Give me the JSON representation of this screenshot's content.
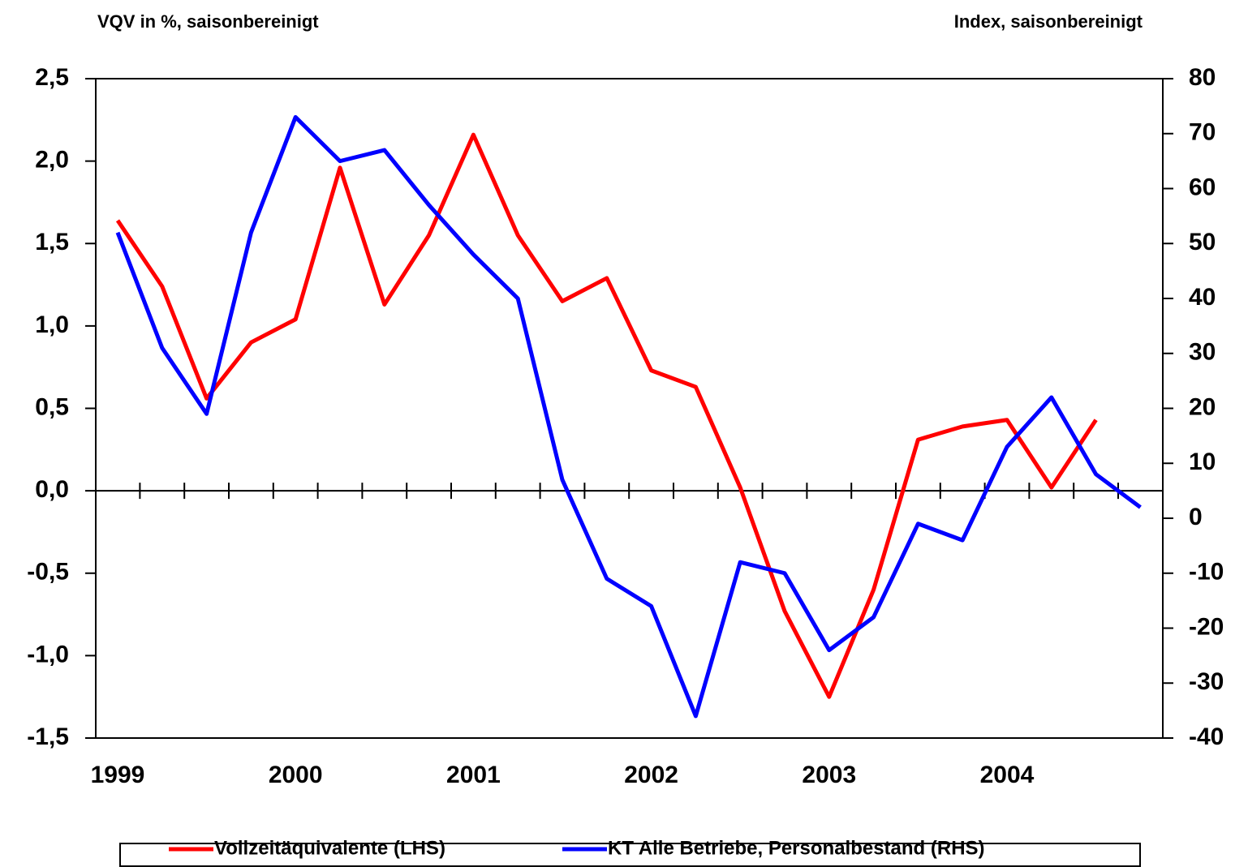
{
  "chart_data": {
    "type": "line",
    "y_label": "VQV in %, saisonbereinigt",
    "y2_label": "Index, saisonbereinigt",
    "categories": [
      "1999",
      null,
      null,
      null,
      "2000",
      null,
      null,
      null,
      "2001",
      null,
      null,
      null,
      "2002",
      null,
      null,
      null,
      "2003",
      null,
      null,
      null,
      "2004",
      null,
      null,
      null
    ],
    "series": [
      {
        "name": "Vollzeitäquivalente (LHS)",
        "color": "#ff0000",
        "axis": "y",
        "values": [
          1.64,
          1.24,
          0.56,
          0.9,
          1.04,
          1.96,
          1.13,
          1.55,
          2.16,
          1.55,
          1.15,
          1.29,
          0.73,
          0.63,
          0.02,
          -0.73,
          -1.25,
          -0.6,
          0.31,
          0.39,
          0.43,
          0.02,
          0.43,
          null
        ]
      },
      {
        "name": "KT Alle Betriebe, Personalbestand (RHS)",
        "color": "#0000ff",
        "axis": "y2",
        "values": [
          52,
          31,
          19,
          52,
          73,
          65,
          67,
          57,
          48,
          40,
          7,
          -11,
          -16,
          -36,
          -8,
          -10,
          -24,
          -18,
          -1,
          -4,
          13,
          22,
          8,
          2
        ]
      }
    ],
    "ylim": [
      -1.5,
      2.5
    ],
    "yticks": [
      {
        "value": -1.5,
        "label": "-1,5"
      },
      {
        "value": -1,
        "label": "-1,0"
      },
      {
        "value": -0.5,
        "label": "-0,5"
      },
      {
        "value": 0,
        "label": "0,0"
      },
      {
        "value": 0.5,
        "label": "0,5"
      },
      {
        "value": 1,
        "label": "1,0"
      },
      {
        "value": 1.5,
        "label": "1,5"
      },
      {
        "value": 2,
        "label": "2,0"
      },
      {
        "value": 2.5,
        "label": "2,5"
      }
    ],
    "y2lim": [
      -40,
      80
    ],
    "y2ticks": [
      -40,
      -30,
      -20,
      -10,
      0,
      10,
      20,
      30,
      40,
      50,
      60,
      70,
      80
    ],
    "legend": "bottom"
  }
}
